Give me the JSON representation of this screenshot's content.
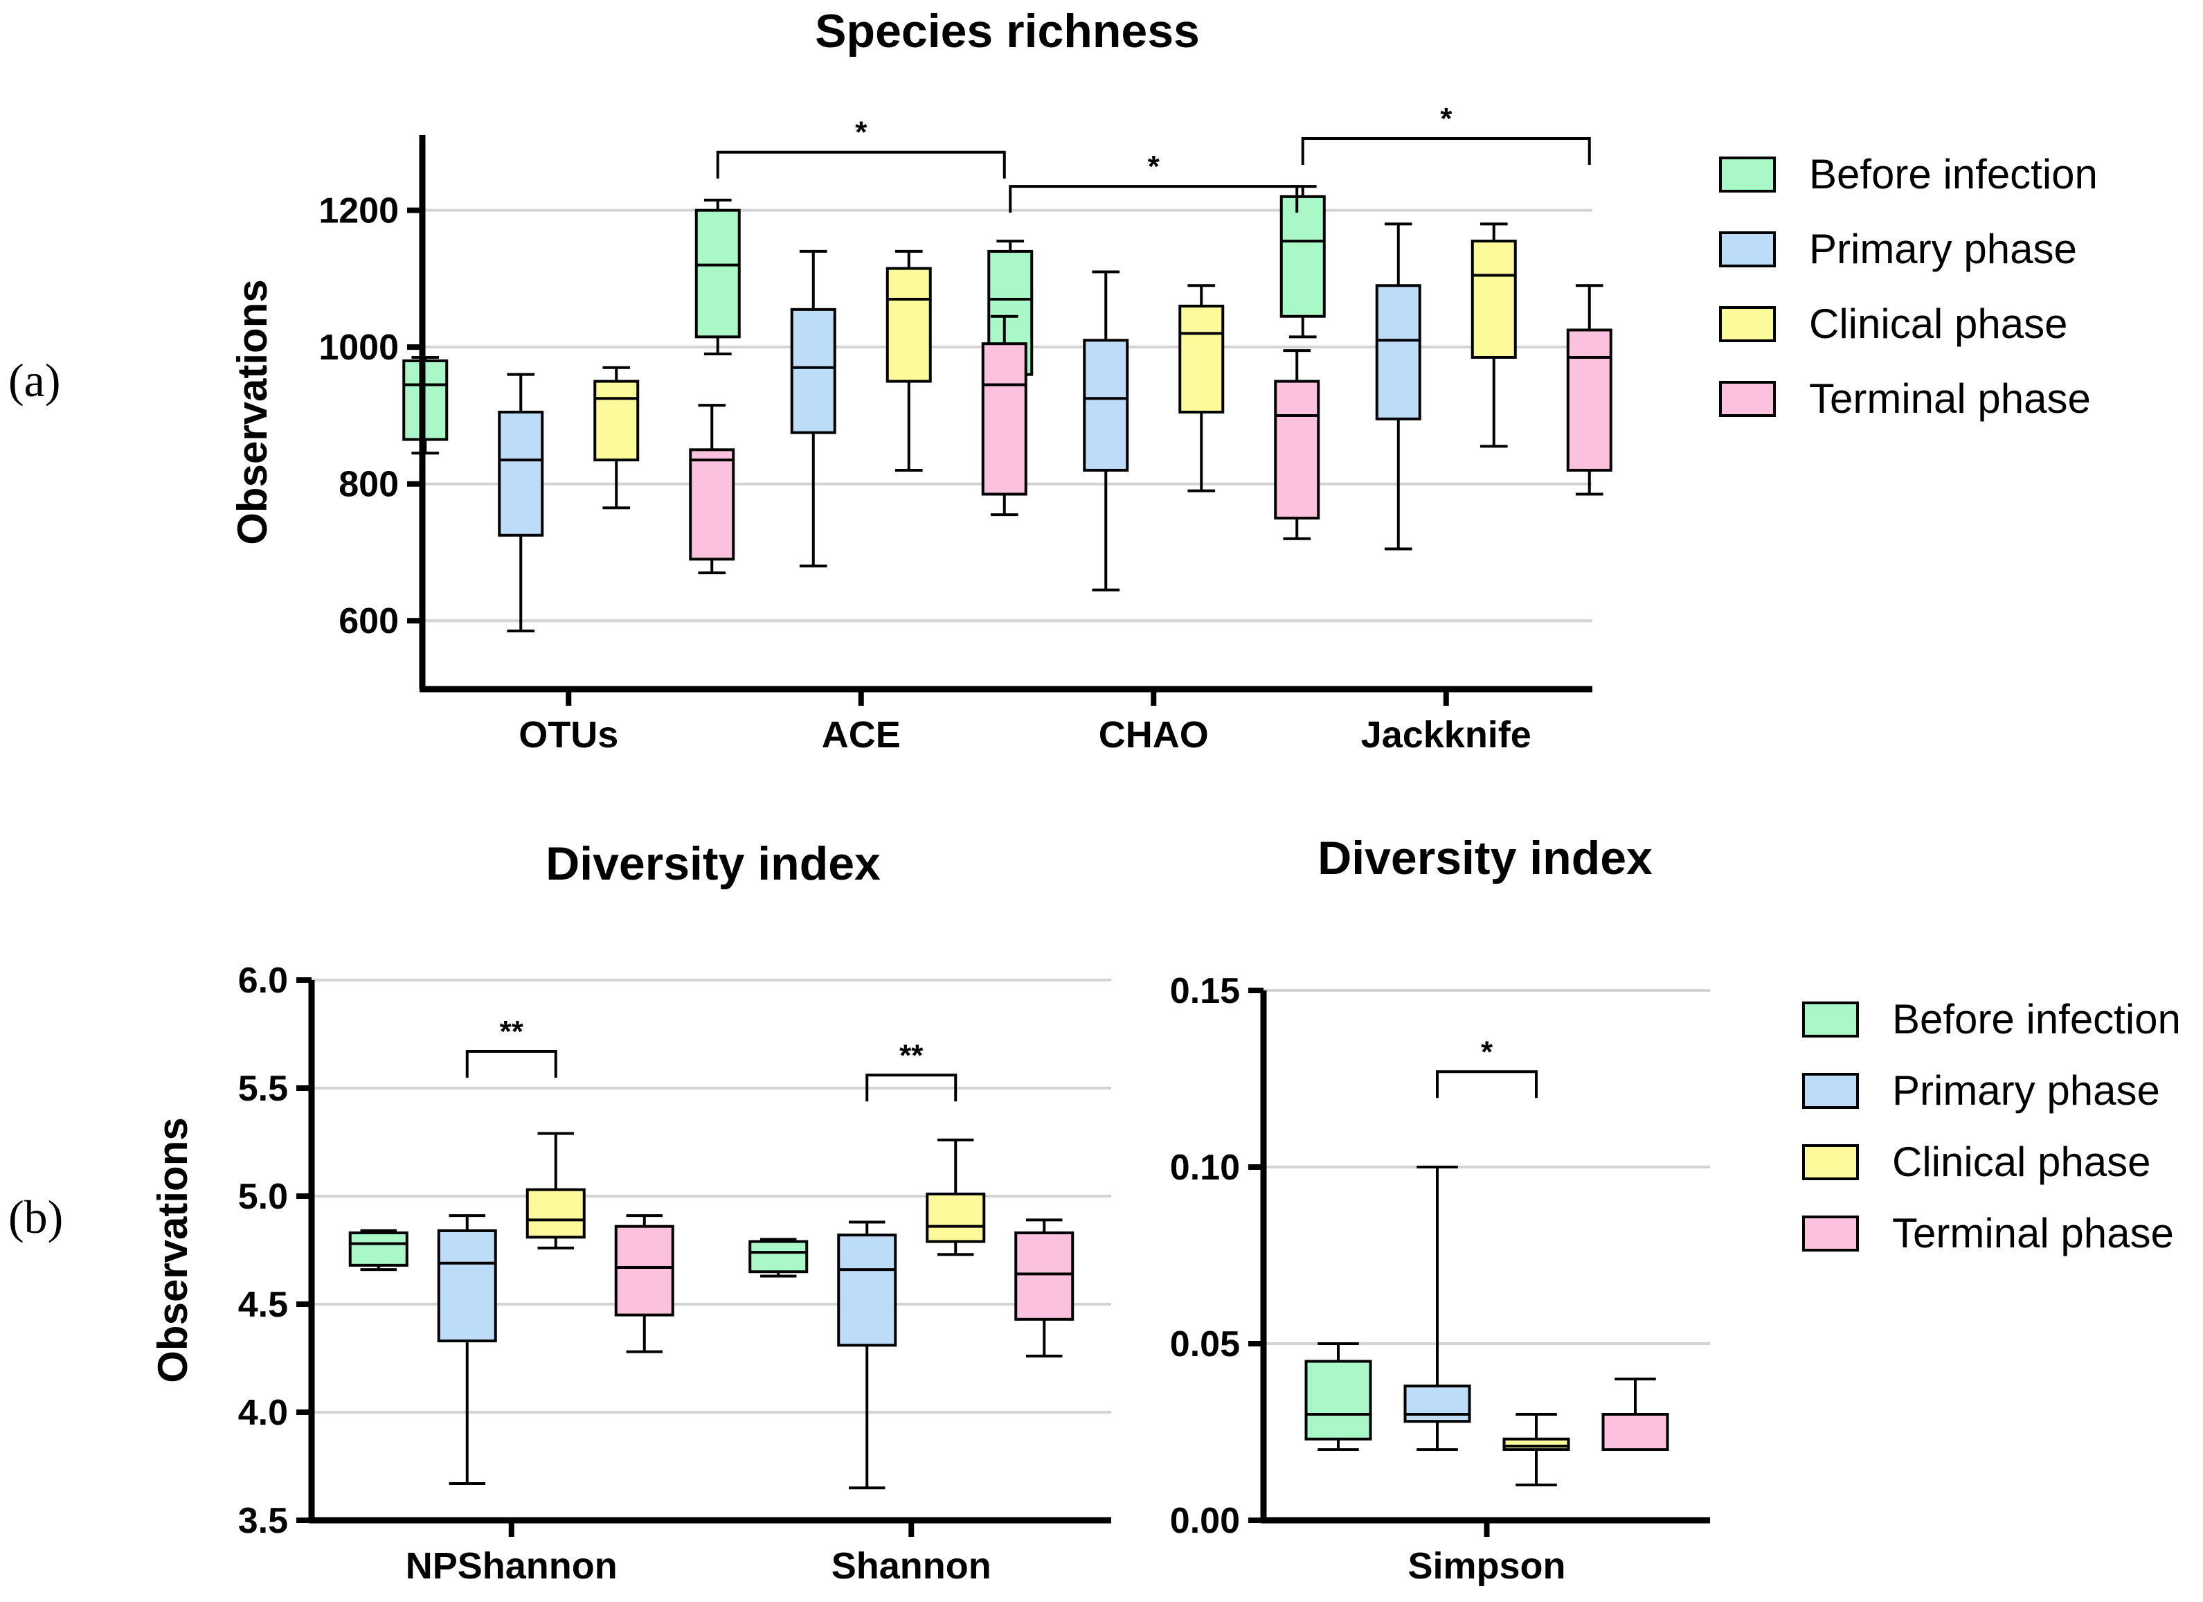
{
  "figure": {
    "panel_labels": [
      "(a)",
      "(b)"
    ]
  },
  "groups": [
    {
      "name": "Before infection",
      "color": "#aaf7c8"
    },
    {
      "name": "Primary phase",
      "color": "#bcdcf7"
    },
    {
      "name": "Clinical phase",
      "color": "#fdfa9c"
    },
    {
      "name": "Terminal phase",
      "color": "#fbc1dd"
    }
  ],
  "chart_data": [
    {
      "type": "box",
      "title": "Species richness",
      "ylabel": "Observations",
      "xlabel": "",
      "ylim": [
        500,
        1310
      ],
      "yticks": [
        600,
        800,
        1000,
        1200
      ],
      "yticklabels": [
        "600",
        "800",
        "1000",
        "1200"
      ],
      "grid": true,
      "legend": "right",
      "categories": [
        "OTUs",
        "ACE",
        "CHAO",
        "Jackknife"
      ],
      "series": [
        {
          "name": "Before infection",
          "boxes": [
            {
              "min": 845,
              "q1": 865,
              "median": 945,
              "q3": 980,
              "max": 985
            },
            {
              "min": 990,
              "q1": 1015,
              "median": 1120,
              "q3": 1200,
              "max": 1215
            },
            {
              "min": 935,
              "q1": 960,
              "median": 1070,
              "q3": 1140,
              "max": 1155
            },
            {
              "min": 1015,
              "q1": 1045,
              "median": 1155,
              "q3": 1220,
              "max": 1235
            }
          ]
        },
        {
          "name": "Primary phase",
          "boxes": [
            {
              "min": 585,
              "q1": 725,
              "median": 835,
              "q3": 905,
              "max": 960
            },
            {
              "min": 680,
              "q1": 875,
              "median": 970,
              "q3": 1055,
              "max": 1140
            },
            {
              "min": 645,
              "q1": 820,
              "median": 925,
              "q3": 1010,
              "max": 1110
            },
            {
              "min": 705,
              "q1": 895,
              "median": 1010,
              "q3": 1090,
              "max": 1180
            }
          ]
        },
        {
          "name": "Clinical phase",
          "boxes": [
            {
              "min": 765,
              "q1": 835,
              "median": 925,
              "q3": 950,
              "max": 970
            },
            {
              "min": 820,
              "q1": 950,
              "median": 1070,
              "q3": 1115,
              "max": 1140
            },
            {
              "min": 790,
              "q1": 905,
              "median": 1020,
              "q3": 1060,
              "max": 1090
            },
            {
              "min": 855,
              "q1": 985,
              "median": 1105,
              "q3": 1155,
              "max": 1180
            }
          ]
        },
        {
          "name": "Terminal phase",
          "boxes": [
            {
              "min": 670,
              "q1": 690,
              "median": 835,
              "q3": 850,
              "max": 915
            },
            {
              "min": 755,
              "q1": 785,
              "median": 945,
              "q3": 1005,
              "max": 1045
            },
            {
              "min": 720,
              "q1": 750,
              "median": 900,
              "q3": 950,
              "max": 995
            },
            {
              "min": 785,
              "q1": 820,
              "median": 985,
              "q3": 1025,
              "max": 1090
            }
          ]
        }
      ],
      "annotations": [
        {
          "category": 1,
          "from": 0,
          "to": 3,
          "y": 1285,
          "text": "*"
        },
        {
          "category": 2,
          "from": 0,
          "to": 3,
          "y": 1235,
          "text": "*"
        },
        {
          "category": 3,
          "from": 0,
          "to": 3,
          "y": 1305,
          "text": "*"
        }
      ]
    },
    {
      "type": "box",
      "title": "Diversity index",
      "ylabel": "Observations",
      "xlabel": "",
      "ylim": [
        3.5,
        6.0
      ],
      "yticks": [
        3.5,
        4.0,
        4.5,
        5.0,
        5.5,
        6.0
      ],
      "yticklabels": [
        "3.5",
        "4.0",
        "4.5",
        "5.0",
        "5.5",
        "6.0"
      ],
      "grid": true,
      "legend": "none",
      "categories": [
        "NPShannon",
        "Shannon"
      ],
      "series": [
        {
          "name": "Before infection",
          "boxes": [
            {
              "min": 4.66,
              "q1": 4.68,
              "median": 4.78,
              "q3": 4.83,
              "max": 4.84
            },
            {
              "min": 4.63,
              "q1": 4.65,
              "median": 4.74,
              "q3": 4.79,
              "max": 4.8
            }
          ]
        },
        {
          "name": "Primary phase",
          "boxes": [
            {
              "min": 3.67,
              "q1": 4.33,
              "median": 4.69,
              "q3": 4.84,
              "max": 4.91
            },
            {
              "min": 3.65,
              "q1": 4.31,
              "median": 4.66,
              "q3": 4.82,
              "max": 4.88
            }
          ]
        },
        {
          "name": "Clinical phase",
          "boxes": [
            {
              "min": 4.76,
              "q1": 4.81,
              "median": 4.89,
              "q3": 5.03,
              "max": 5.29
            },
            {
              "min": 4.73,
              "q1": 4.79,
              "median": 4.86,
              "q3": 5.01,
              "max": 5.26
            }
          ]
        },
        {
          "name": "Terminal phase",
          "boxes": [
            {
              "min": 4.28,
              "q1": 4.45,
              "median": 4.67,
              "q3": 4.86,
              "max": 4.91
            },
            {
              "min": 4.26,
              "q1": 4.43,
              "median": 4.64,
              "q3": 4.83,
              "max": 4.89
            }
          ]
        }
      ],
      "annotations": [
        {
          "category": 0,
          "from": 1,
          "to": 2,
          "y": 5.67,
          "text": "**"
        },
        {
          "category": 1,
          "from": 1,
          "to": 2,
          "y": 5.56,
          "text": "**"
        }
      ]
    },
    {
      "type": "box",
      "title": "Diversity index",
      "ylabel": "",
      "xlabel": "",
      "ylim": [
        0.0,
        0.15
      ],
      "yticks": [
        0.0,
        0.05,
        0.1,
        0.15
      ],
      "yticklabels": [
        "0.00",
        "0.05",
        "0.10",
        "0.15"
      ],
      "grid": true,
      "legend": "right",
      "categories": [
        "Simpson"
      ],
      "series": [
        {
          "name": "Before infection",
          "boxes": [
            {
              "min": 0.02,
              "q1": 0.023,
              "median": 0.03,
              "q3": 0.045,
              "max": 0.05
            }
          ]
        },
        {
          "name": "Primary phase",
          "boxes": [
            {
              "min": 0.02,
              "q1": 0.028,
              "median": 0.03,
              "q3": 0.038,
              "max": 0.1
            }
          ]
        },
        {
          "name": "Clinical phase",
          "boxes": [
            {
              "min": 0.01,
              "q1": 0.02,
              "median": 0.021,
              "q3": 0.023,
              "max": 0.03
            }
          ]
        },
        {
          "name": "Terminal phase",
          "boxes": [
            {
              "min": 0.02,
              "q1": 0.02,
              "median": 0.02,
              "q3": 0.03,
              "max": 0.04
            }
          ]
        }
      ],
      "annotations": [
        {
          "category": 0,
          "from": 1,
          "to": 2,
          "y": 0.127,
          "text": "*"
        }
      ]
    }
  ]
}
